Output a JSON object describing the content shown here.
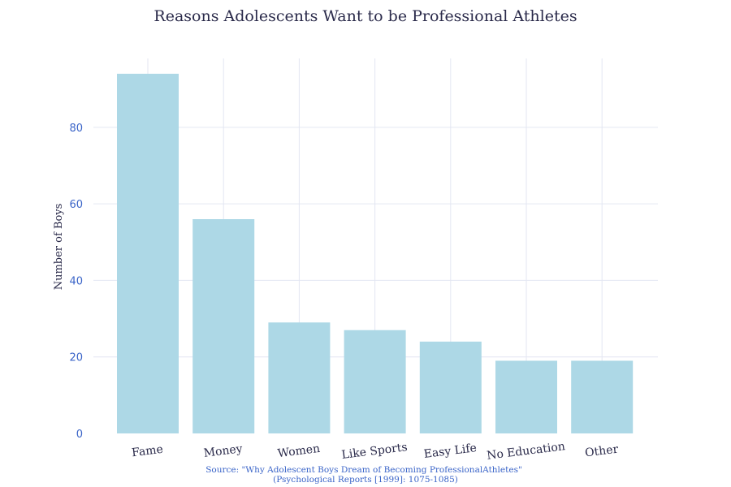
{
  "chart_data": {
    "type": "bar",
    "title": "Reasons Adolescents Want to be Professional Athletes",
    "xlabel": "",
    "ylabel": "Number of Boys",
    "categories": [
      "Fame",
      "Money",
      "Women",
      "Like Sports",
      "Easy Life",
      "No Education",
      "Other"
    ],
    "values": [
      94,
      56,
      29,
      27,
      24,
      19,
      19
    ],
    "ylim": [
      0,
      98
    ],
    "yticks": [
      0,
      20,
      40,
      60,
      80
    ],
    "grid": true,
    "colors": {
      "bar": "#add8e6",
      "tick": "#3a64c8",
      "text": "#2a2a4a",
      "grid": "#e3e6f2"
    },
    "source_line1": "Source: \"Why Adolescent Boys Dream of Becoming ProfessionalAthletes\"",
    "source_line2": "(Psychological Reports [1999]: 1075-1085)"
  }
}
